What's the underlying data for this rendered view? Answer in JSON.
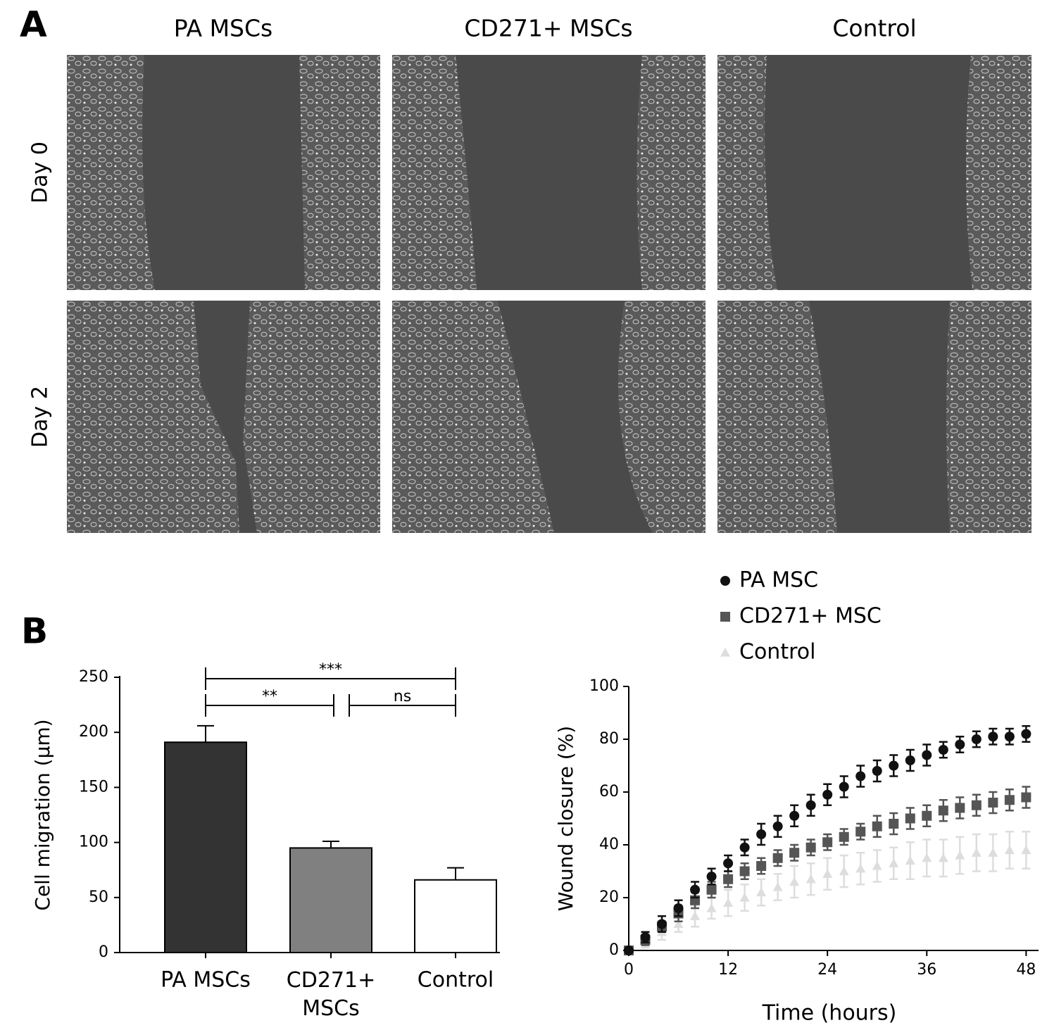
{
  "panel_a": {
    "label": "A",
    "columns": [
      "PA MSCs",
      "CD271+ MSCs",
      "Control"
    ],
    "rows": [
      "Day 0",
      "Day 2"
    ]
  },
  "panel_b": {
    "label": "B"
  },
  "chart_data": [
    {
      "type": "bar",
      "categories": [
        "PA MSCs",
        "CD271+ MSCs",
        "Control"
      ],
      "values": [
        191,
        95,
        66
      ],
      "errors": [
        15,
        6,
        11
      ],
      "colors": [
        "#333333",
        "#808080",
        "#ffffff"
      ],
      "ylabel": "Cell migration (µm)",
      "ylim": [
        0,
        250
      ],
      "yticks": [
        0,
        50,
        100,
        150,
        200,
        250
      ],
      "annotations": [
        {
          "text": "***"
        },
        {
          "text": "**"
        },
        {
          "text": "ns"
        }
      ]
    },
    {
      "type": "scatter",
      "xlabel": "Time (hours)",
      "ylabel": "Wound closure (%)",
      "xlim": [
        0,
        49.5
      ],
      "xticks": [
        0,
        12,
        24,
        36,
        48
      ],
      "ylim": [
        0,
        100
      ],
      "yticks": [
        0,
        20,
        40,
        60,
        80,
        100
      ],
      "x": [
        0,
        2,
        4,
        6,
        8,
        10,
        12,
        14,
        16,
        18,
        20,
        22,
        24,
        26,
        28,
        30,
        32,
        34,
        36,
        38,
        40,
        42,
        44,
        46,
        48
      ],
      "series": [
        {
          "name": "PA MSC",
          "color": "#111111",
          "marker": "circle",
          "values": [
            0,
            5,
            10,
            16,
            23,
            28,
            33,
            39,
            44,
            47,
            51,
            55,
            59,
            62,
            66,
            68,
            70,
            72,
            74,
            76,
            78,
            80,
            81,
            81,
            82
          ],
          "errors": [
            0,
            2,
            3,
            3,
            3,
            3,
            3,
            3,
            4,
            4,
            4,
            4,
            4,
            4,
            4,
            4,
            4,
            4,
            4,
            3,
            3,
            3,
            3,
            3,
            3
          ]
        },
        {
          "name": "CD271+ MSC",
          "color": "#555555",
          "marker": "square",
          "values": [
            0,
            4,
            9,
            14,
            19,
            23,
            27,
            30,
            32,
            35,
            37,
            39,
            41,
            43,
            45,
            47,
            48,
            50,
            51,
            53,
            54,
            55,
            56,
            57,
            58
          ],
          "errors": [
            0,
            2,
            2,
            3,
            3,
            3,
            3,
            3,
            3,
            3,
            3,
            3,
            3,
            3,
            3,
            4,
            4,
            4,
            4,
            4,
            4,
            4,
            4,
            4,
            4
          ]
        },
        {
          "name": "Control",
          "color": "#dddddd",
          "marker": "triangle",
          "values": [
            0,
            3,
            7,
            10,
            13,
            16,
            18,
            20,
            22,
            24,
            26,
            27,
            29,
            30,
            31,
            32,
            33,
            34,
            35,
            35,
            36,
            37,
            37,
            38,
            38
          ],
          "errors": [
            0,
            2,
            3,
            3,
            4,
            4,
            5,
            5,
            5,
            5,
            6,
            6,
            6,
            6,
            6,
            6,
            6,
            7,
            7,
            7,
            7,
            7,
            7,
            7,
            7
          ]
        }
      ]
    }
  ]
}
